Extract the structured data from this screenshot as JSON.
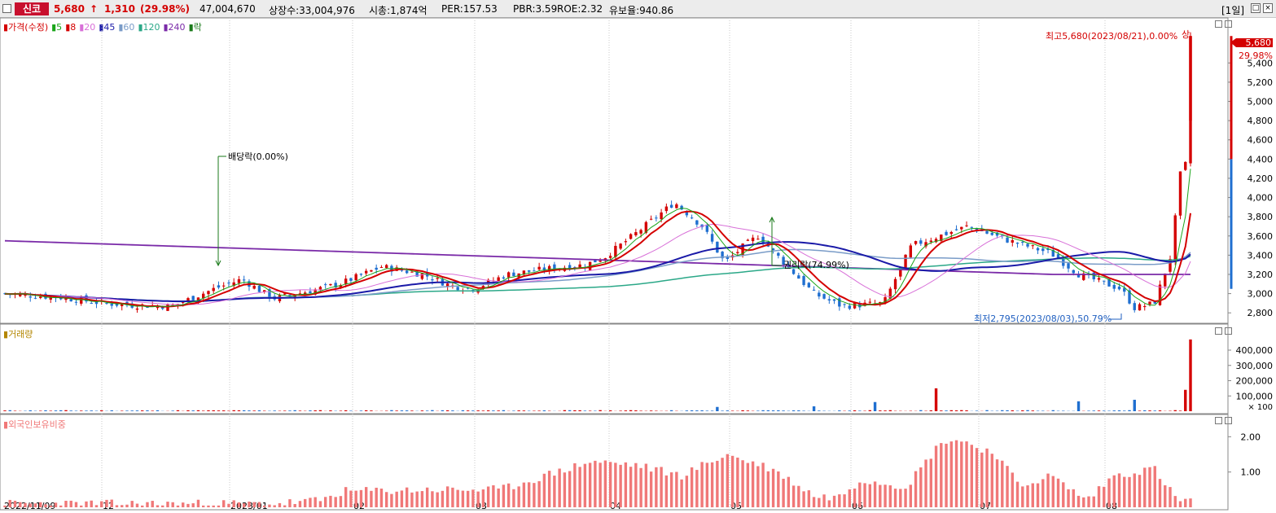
{
  "header": {
    "stock_name": "신코",
    "price": "5,680",
    "arrow": "↑",
    "change": "1,310",
    "change_pct": "(29.98%)",
    "volume": "47,004,670",
    "listed": "상장수:33,004,976",
    "marketcap": "시총:1,874억",
    "per": "PER:157.53",
    "pbr": "PBR:3.59",
    "roe": "ROE:2.32",
    "float": "유보율:940.86",
    "period": "[1일]"
  },
  "price_panel": {
    "legend": [
      {
        "label": "가격(수정)",
        "color": "#d40000"
      },
      {
        "label": "5",
        "color": "#1aa51a"
      },
      {
        "label": "8",
        "color": "#d40000"
      },
      {
        "label": "20",
        "color": "#d870d8"
      },
      {
        "label": "45",
        "color": "#1a1aa8"
      },
      {
        "label": "60",
        "color": "#7a9cc8"
      },
      {
        "label": "120",
        "color": "#2ba888"
      },
      {
        "label": "240",
        "color": "#7a2aa8"
      },
      {
        "label": "락",
        "color": "#1a7a1a"
      }
    ],
    "annotations": {
      "dividend": "배당락(0.00%)",
      "rights": "권리락(74.99%)",
      "high": "최고5,680(2023/08/21),0.00%",
      "high_mark": "상",
      "low": "최저2,795(2023/08/03),50.79%"
    },
    "last_price_tag": "5,680",
    "last_pct_tag": "29.98%",
    "yticks": [
      "5,400",
      "5,200",
      "5,000",
      "4,800",
      "4,600",
      "4,400",
      "4,200",
      "4,000",
      "3,800",
      "3,600",
      "3,400",
      "3,200",
      "3,000",
      "2,800"
    ]
  },
  "volume_panel": {
    "legend": "거래량",
    "yticks": [
      "400,000",
      "300,000",
      "200,000",
      "100,000"
    ],
    "unit": "× 100"
  },
  "foreign_panel": {
    "legend": "외국인보유비중",
    "yticks": [
      "2.00",
      "1.00"
    ]
  },
  "xaxis": {
    "labels": [
      "2022/11/09",
      "12",
      "2023/01",
      "02",
      "03",
      "04",
      "05",
      "06",
      "07",
      "08"
    ]
  },
  "colors": {
    "up": "#d40000",
    "down": "#1f6fd0",
    "foreign": "#f07878"
  },
  "chart_data": {
    "type": "candlestick",
    "series": [
      {
        "name": "가격(수정)",
        "type": "candlestick"
      },
      {
        "name": "거래량",
        "type": "bar"
      },
      {
        "name": "외국인보유비중",
        "type": "bar"
      }
    ],
    "x_start": "2022/11/09",
    "x_end": "2023/08/21",
    "price_high": {
      "value": 5680,
      "date": "2023/08/21"
    },
    "price_low": {
      "value": 2795,
      "date": "2023/08/03"
    },
    "last_close": 5680,
    "change": 1310,
    "change_pct": 29.98,
    "y_range": [
      2700,
      5750
    ],
    "volume_range": [
      0,
      480000
    ],
    "foreign_range": [
      0,
      2.4
    ],
    "month_labels": [
      "2022/11/09",
      "12",
      "2023/01",
      "02",
      "03",
      "04",
      "05",
      "06",
      "07",
      "08"
    ]
  }
}
